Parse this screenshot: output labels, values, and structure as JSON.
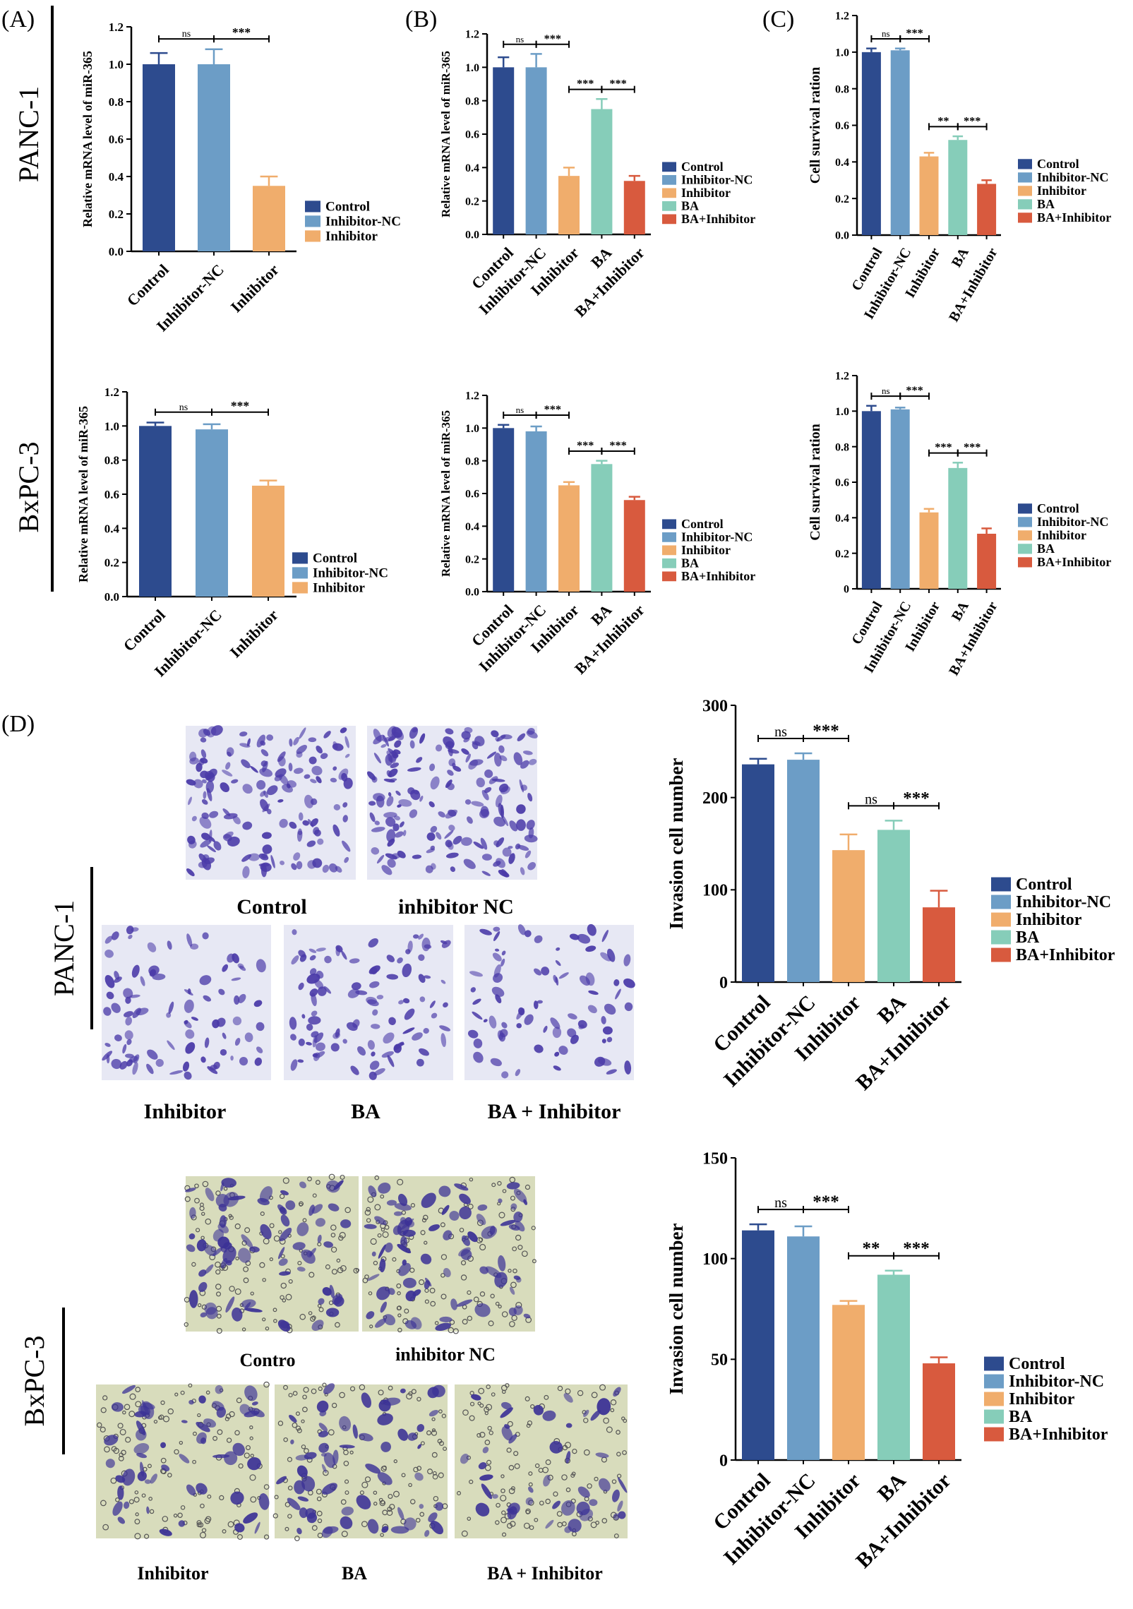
{
  "colors": {
    "Control": "#2d4b8e",
    "Inhibitor-NC": "#6c9dc6",
    "Inhibitor": "#f0ad6c",
    "BA": "#86cdb9",
    "BA+Inhibitor": "#d85a3e",
    "axis": "#000000",
    "micro_blue_bg": "#e7e8f4",
    "micro_blue_cell": "#4a3aa8",
    "micro_yellow_bg": "#d8dcbc",
    "micro_yellow_cell": "#3c3296"
  },
  "panel_labels": [
    "(A)",
    "(B)",
    "(C)",
    "(D)"
  ],
  "row_labels": {
    "top": "PANC-1",
    "bottom": "BxPC-3"
  },
  "chart_data": [
    {
      "id": "A-top",
      "panel": "(A)",
      "row": "PANC-1",
      "type": "bar",
      "categories": [
        "Control",
        "Inhibitor-NC",
        "Inhibitor"
      ],
      "values": [
        1.0,
        1.0,
        0.35
      ],
      "errors": [
        0.06,
        0.08,
        0.05
      ],
      "ylabel": "Relative mRNA level of miR-365",
      "ylim": [
        0,
        1.2
      ],
      "yticks": [
        "0.0",
        "0.2",
        "0.4",
        "0.6",
        "0.8",
        "1.0",
        "1.2"
      ],
      "legend": [
        "Control",
        "Inhibitor-NC",
        "Inhibitor"
      ],
      "significance": [
        {
          "from": 0,
          "to": 1,
          "label": "ns"
        },
        {
          "from": 1,
          "to": 2,
          "label": "***"
        }
      ]
    },
    {
      "id": "A-bot",
      "panel": "(A)",
      "row": "BxPC-3",
      "type": "bar",
      "categories": [
        "Control",
        "Inhibitor-NC",
        "Inhibitor"
      ],
      "values": [
        1.0,
        0.98,
        0.65
      ],
      "errors": [
        0.02,
        0.03,
        0.03
      ],
      "ylabel": "Relative mRNA level of miR-365",
      "ylim": [
        0,
        1.2
      ],
      "yticks": [
        "0.0",
        "0.2",
        "0.4",
        "0.6",
        "0.8",
        "1.0",
        "1.2"
      ],
      "legend": [
        "Control",
        "Inhibitor-NC",
        "Inhibitor"
      ],
      "significance": [
        {
          "from": 0,
          "to": 1,
          "label": "ns"
        },
        {
          "from": 1,
          "to": 2,
          "label": "***"
        }
      ]
    },
    {
      "id": "B-top",
      "panel": "(B)",
      "row": "PANC-1",
      "type": "bar",
      "categories": [
        "Control",
        "Inhibitor-NC",
        "Inhibitor",
        "BA",
        "BA+Inhibitor"
      ],
      "values": [
        1.0,
        1.0,
        0.35,
        0.75,
        0.32
      ],
      "errors": [
        0.06,
        0.08,
        0.05,
        0.06,
        0.03
      ],
      "ylabel": "Relative mRNA level of miR-365",
      "ylim": [
        0,
        1.2
      ],
      "yticks": [
        "0.0",
        "0.2",
        "0.4",
        "0.6",
        "0.8",
        "1.0",
        "1.2"
      ],
      "legend": [
        "Control",
        "Inhibitor-NC",
        "Inhibitor",
        "BA",
        "BA+Inhibitor"
      ],
      "significance": [
        {
          "from": 0,
          "to": 1,
          "label": "ns"
        },
        {
          "from": 1,
          "to": 2,
          "label": "***"
        },
        {
          "from": 2,
          "to": 3,
          "label": "***"
        },
        {
          "from": 3,
          "to": 4,
          "label": "***"
        }
      ]
    },
    {
      "id": "B-bot",
      "panel": "(B)",
      "row": "BxPC-3",
      "type": "bar",
      "categories": [
        "Control",
        "Inhibitor-NC",
        "Inhibitor",
        "BA",
        "BA+Inhibitor"
      ],
      "values": [
        1.0,
        0.98,
        0.65,
        0.78,
        0.56
      ],
      "errors": [
        0.02,
        0.03,
        0.02,
        0.02,
        0.02
      ],
      "ylabel": "Relative mRNA level of miR-365",
      "ylim": [
        0,
        1.2
      ],
      "yticks": [
        "0.0",
        "0.2",
        "0.4",
        "0.6",
        "0.8",
        "1.0",
        "1.2"
      ],
      "legend": [
        "Control",
        "Inhibitor-NC",
        "Inhibitor",
        "BA",
        "BA+Inhibitor"
      ],
      "significance": [
        {
          "from": 0,
          "to": 1,
          "label": "ns"
        },
        {
          "from": 1,
          "to": 2,
          "label": "***"
        },
        {
          "from": 2,
          "to": 3,
          "label": "***"
        },
        {
          "from": 3,
          "to": 4,
          "label": "***"
        }
      ]
    },
    {
      "id": "C-top",
      "panel": "(C)",
      "row": "PANC-1",
      "type": "bar",
      "categories": [
        "Control",
        "Inhibitor-NC",
        "Inhibitor",
        "BA",
        "BA+Inhibitor"
      ],
      "values": [
        1.0,
        1.01,
        0.43,
        0.52,
        0.28
      ],
      "errors": [
        0.02,
        0.01,
        0.02,
        0.02,
        0.02
      ],
      "ylabel": "Cell survival ration",
      "ylim": [
        0,
        1.2
      ],
      "yticks": [
        "0.0",
        "0.2",
        "0.4",
        "0.6",
        "0.8",
        "1.0",
        "1.2"
      ],
      "legend": [
        "Control",
        "Inhibitor-NC",
        "Inhibitor",
        "BA",
        "BA+Inhibitor"
      ],
      "significance": [
        {
          "from": 0,
          "to": 1,
          "label": "ns"
        },
        {
          "from": 1,
          "to": 2,
          "label": "***"
        },
        {
          "from": 2,
          "to": 3,
          "label": "**"
        },
        {
          "from": 3,
          "to": 4,
          "label": "***"
        }
      ]
    },
    {
      "id": "C-bot",
      "panel": "(C)",
      "row": "BxPC-3",
      "type": "bar",
      "categories": [
        "Control",
        "Inhibitor-NC",
        "Inhibitor",
        "BA",
        "BA+Inhibitor"
      ],
      "values": [
        1.0,
        1.01,
        0.43,
        0.68,
        0.31
      ],
      "errors": [
        0.03,
        0.01,
        0.02,
        0.03,
        0.03
      ],
      "ylabel": "Cell survival ration",
      "ylim": [
        0,
        1.2
      ],
      "yticks": [
        "0",
        "0.2",
        "0.4",
        "0.6",
        "0.8",
        "1.0",
        "1.2"
      ],
      "legend": [
        "Control",
        "Inhibitor-NC",
        "Inhibitor",
        "BA",
        "BA+Inhibitor"
      ],
      "significance": [
        {
          "from": 0,
          "to": 1,
          "label": "ns"
        },
        {
          "from": 1,
          "to": 2,
          "label": "***"
        },
        {
          "from": 2,
          "to": 3,
          "label": "***"
        },
        {
          "from": 3,
          "to": 4,
          "label": "***"
        }
      ]
    },
    {
      "id": "D-top",
      "panel": "(D)",
      "row": "PANC-1",
      "type": "bar",
      "categories": [
        "Control",
        "Inhibitor-NC",
        "Inhibitor",
        "BA",
        "BA+Inhibitor"
      ],
      "values": [
        236,
        241,
        143,
        165,
        81
      ],
      "errors": [
        6,
        7,
        17,
        10,
        18
      ],
      "ylabel": "Invasion cell number",
      "ylim": [
        0,
        300
      ],
      "yticks": [
        "0",
        "100",
        "200",
        "300"
      ],
      "legend": [
        "Control",
        "Inhibitor-NC",
        "Inhibitor",
        "BA",
        "BA+Inhibitor"
      ],
      "significance": [
        {
          "from": 0,
          "to": 1,
          "label": "ns"
        },
        {
          "from": 1,
          "to": 2,
          "label": "***"
        },
        {
          "from": 2,
          "to": 3,
          "label": "ns"
        },
        {
          "from": 3,
          "to": 4,
          "label": "***"
        }
      ]
    },
    {
      "id": "D-bot",
      "panel": "(D)",
      "row": "BxPC-3",
      "type": "bar",
      "categories": [
        "Control",
        "Inhibitor-NC",
        "Inhibitor",
        "BA",
        "BA+Inhibitor"
      ],
      "values": [
        114,
        111,
        77,
        92,
        48
      ],
      "errors": [
        3,
        5,
        2,
        2,
        3
      ],
      "ylabel": "Invasion cell number",
      "ylim": [
        0,
        150
      ],
      "yticks": [
        "0",
        "50",
        "100",
        "150"
      ],
      "legend": [
        "Control",
        "Inhibitor-NC",
        "Inhibitor",
        "BA",
        "BA+Inhibitor"
      ],
      "significance": [
        {
          "from": 0,
          "to": 1,
          "label": "ns"
        },
        {
          "from": 1,
          "to": 2,
          "label": "***"
        },
        {
          "from": 2,
          "to": 3,
          "label": "**"
        },
        {
          "from": 3,
          "to": 4,
          "label": "***"
        }
      ]
    }
  ],
  "micrographs": {
    "panc1": [
      "Control",
      "inhibitor NC",
      "Inhibitor",
      "BA",
      "BA + Inhibitor"
    ],
    "bxpc3": [
      "Contro",
      "inhibitor NC",
      "Inhibitor",
      "BA",
      "BA + Inhibitor"
    ]
  }
}
